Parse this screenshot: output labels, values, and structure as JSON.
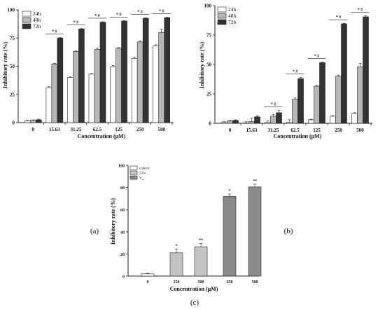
{
  "colors": {
    "24h": "#ffffff",
    "48h": "#b7b7b7",
    "72h": "#333333",
    "control": "#ffffff",
    "5-Fu": "#c4c4c4",
    "V_ub": "#8a8a8a"
  },
  "chart_data": [
    {
      "type": "bar",
      "panel_label": "(a)",
      "xlabel": "Concentration (μM)",
      "ylabel": "Inhibitory rate (%)",
      "ylim": [
        0,
        100
      ],
      "yticks": [
        "0",
        "25",
        "50",
        "75",
        "100"
      ],
      "categories": [
        "0",
        "15.63",
        "31.25",
        "62.5",
        "125",
        "250",
        "500"
      ],
      "legend_position": "top-left",
      "series": [
        {
          "name": "24h",
          "color_key": "24h",
          "values": [
            1.5,
            31,
            40,
            43,
            49.5,
            57,
            68
          ],
          "errors": [
            0.5,
            0.8,
            0.5,
            0.5,
            1,
            1,
            1
          ]
        },
        {
          "name": "48h",
          "color_key": "48h",
          "values": [
            2,
            52,
            63,
            65,
            66,
            71.5,
            80
          ],
          "errors": [
            0.5,
            0.5,
            0.5,
            1,
            0.5,
            1,
            3
          ]
        },
        {
          "name": "72h",
          "color_key": "72h",
          "values": [
            2.5,
            75,
            83,
            89,
            90,
            92.5,
            93
          ],
          "errors": [
            0.5,
            0.5,
            0.5,
            0.5,
            0.5,
            0.5,
            0.5
          ]
        }
      ],
      "annotations": [
        "",
        "* #",
        "* #",
        "* #",
        "* #",
        "* #",
        "* #"
      ]
    },
    {
      "type": "bar",
      "panel_label": "(b)",
      "xlabel": "Concentration (μM)",
      "ylabel": "Inhibitory rate (%)",
      "ylim": [
        0,
        100
      ],
      "yticks": [
        "0",
        "25",
        "50",
        "75",
        "100"
      ],
      "categories": [
        "0",
        "15.63",
        "31.25",
        "62.5",
        "125",
        "250",
        "500"
      ],
      "legend_position": "top-left",
      "series": [
        {
          "name": "24h",
          "color_key": "24h",
          "values": [
            1,
            0.5,
            1,
            1,
            3,
            6,
            8.5
          ],
          "errors": [
            0.5,
            1,
            1,
            2,
            0.5,
            0.5,
            0.5
          ]
        },
        {
          "name": "48h",
          "color_key": "48h",
          "values": [
            2,
            1.5,
            6,
            20.5,
            31.5,
            40,
            48
          ],
          "errors": [
            0.5,
            3,
            1.5,
            1,
            1,
            1,
            3
          ]
        },
        {
          "name": "72h",
          "color_key": "72h",
          "values": [
            2.5,
            5.5,
            9,
            38,
            51.5,
            84.5,
            90.5
          ],
          "errors": [
            0.5,
            1,
            2,
            1,
            0.5,
            0.5,
            1
          ]
        }
      ],
      "annotations": [
        "",
        "",
        "* #",
        "* #",
        "* #",
        "* #",
        "* #"
      ]
    },
    {
      "type": "bar",
      "panel_label": "(c)",
      "xlabel": "Concentration (μM)",
      "ylabel": "Inhibitory rate (%)",
      "ylim": [
        0,
        100
      ],
      "yticks": [
        "0",
        "20",
        "40",
        "60",
        "80",
        "100"
      ],
      "categories": [
        "0",
        "250",
        "500",
        "250",
        "500"
      ],
      "legend_position": "top-left",
      "legend": [
        {
          "name": "control",
          "color_key": "control"
        },
        {
          "name": "5-Fu",
          "color_key": "5-Fu"
        },
        {
          "name": "V",
          "sub": "ub",
          "color_key": "V_ub"
        }
      ],
      "bars": [
        {
          "value": 2,
          "error": 0.5,
          "color_key": "control",
          "annotation": ""
        },
        {
          "value": 21,
          "error": 3.5,
          "color_key": "5-Fu",
          "annotation": "*"
        },
        {
          "value": 26.5,
          "error": 3,
          "color_key": "5-Fu",
          "annotation": "**"
        },
        {
          "value": 72,
          "error": 2,
          "color_key": "V_ub",
          "annotation": "*"
        },
        {
          "value": 80.5,
          "error": 2.5,
          "color_key": "V_ub",
          "annotation": "**"
        }
      ]
    }
  ]
}
